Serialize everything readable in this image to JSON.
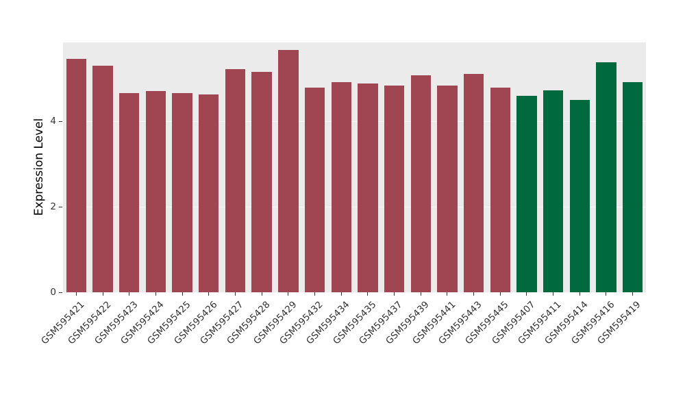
{
  "figure": {
    "background": "#ffffff",
    "panel_background": "#EBEBEB"
  },
  "chart_data": {
    "type": "bar",
    "title": "",
    "xlabel": "",
    "ylabel": "Expression Level",
    "ylim": [
      0,
      5.84
    ],
    "yticks": [
      0,
      2,
      4
    ],
    "grid": "subtle-white-horizontal",
    "legend": "none",
    "categories": [
      "GSM595421",
      "GSM595422",
      "GSM595423",
      "GSM595424",
      "GSM595425",
      "GSM595426",
      "GSM595427",
      "GSM595428",
      "GSM595429",
      "GSM595432",
      "GSM595434",
      "GSM595435",
      "GSM595437",
      "GSM595439",
      "GSM595441",
      "GSM595443",
      "GSM595445",
      "GSM595407",
      "GSM595411",
      "GSM595414",
      "GSM595416",
      "GSM595419"
    ],
    "values": [
      5.45,
      5.3,
      4.66,
      4.7,
      4.66,
      4.62,
      5.22,
      5.15,
      5.67,
      4.78,
      4.92,
      4.88,
      4.83,
      5.08,
      4.83,
      5.11,
      4.78,
      4.6,
      4.72,
      4.5,
      5.37,
      4.92
    ],
    "bar_colors": [
      "#A04552",
      "#A04552",
      "#A04552",
      "#A04552",
      "#A04552",
      "#A04552",
      "#A04552",
      "#A04552",
      "#A04552",
      "#A04552",
      "#A04552",
      "#A04552",
      "#A04552",
      "#A04552",
      "#A04552",
      "#A04552",
      "#A04552",
      "#00693E",
      "#00693E",
      "#00693E",
      "#00693E",
      "#00693E"
    ],
    "group_colors": {
      "maroon_group": "#A04552",
      "green_group": "#00693E"
    }
  }
}
